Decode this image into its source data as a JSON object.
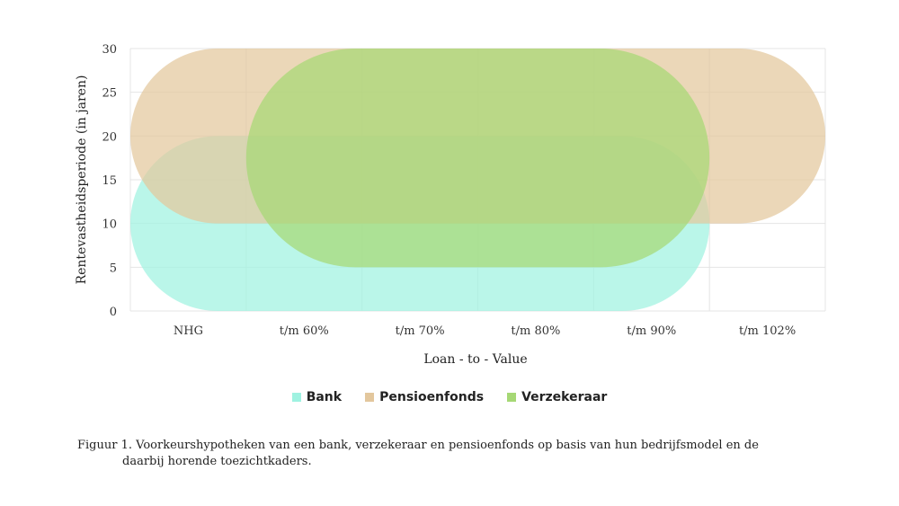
{
  "chart_data": {
    "type": "range-bar",
    "categories": [
      "NHG",
      "t/m 60%",
      "t/m 70%",
      "t/m 80%",
      "t/m 90%",
      "t/m 102%"
    ],
    "xlabel": "Loan - to - Value",
    "ylabel": "Rentevastheidsperiode (in jaren)",
    "ylim": [
      0,
      30
    ],
    "yticks": [
      0,
      5,
      10,
      15,
      20,
      25,
      30
    ],
    "grid": true,
    "legend_position": "bottom-center",
    "series": [
      {
        "name": "Bank",
        "color": "#9ff2e1",
        "x_from": "NHG",
        "x_to": "t/m 90%",
        "y_from": 0,
        "y_to": 20
      },
      {
        "name": "Pensioenfonds",
        "color": "#e3c79d",
        "x_from": "NHG",
        "x_to": "t/m 102%",
        "y_from": 10,
        "y_to": 30
      },
      {
        "name": "Verzekeraar",
        "color": "#a6d875",
        "x_from": "t/m 60%",
        "x_to": "t/m 90%",
        "y_from": 5,
        "y_to": 30
      }
    ]
  },
  "caption": {
    "line1": "Figuur 1. Voorkeurshypotheken van een bank, verzekeraar en pensioenfonds op basis van hun bedrijfsmodel en de",
    "line2": "daarbij horende toezichtkaders."
  }
}
